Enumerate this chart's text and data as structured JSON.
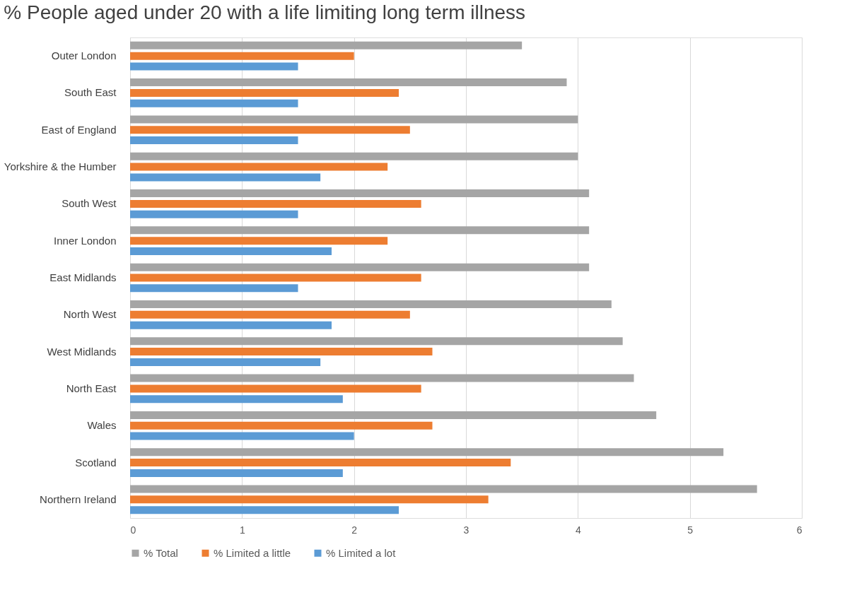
{
  "chart_data": {
    "type": "bar",
    "orientation": "horizontal",
    "title": "% People aged under 20 with a life limiting long term illness",
    "categories": [
      "Outer London",
      "South East",
      "East of England",
      "Yorkshire & the Humber",
      "South West",
      "Inner London",
      "East Midlands",
      "North West",
      "West Midlands",
      "North East",
      "Wales",
      "Scotland",
      "Northern Ireland"
    ],
    "series": [
      {
        "name": "% Total",
        "color": "#a5a5a5",
        "values": [
          3.5,
          3.9,
          4.0,
          4.0,
          4.1,
          4.1,
          4.1,
          4.3,
          4.4,
          4.5,
          4.7,
          5.3,
          5.6
        ]
      },
      {
        "name": "% Limited a little",
        "color": "#ed7d31",
        "values": [
          2.0,
          2.4,
          2.5,
          2.3,
          2.6,
          2.3,
          2.6,
          2.5,
          2.7,
          2.6,
          2.7,
          3.4,
          3.2
        ]
      },
      {
        "name": "% Limited a lot",
        "color": "#5b9bd5",
        "values": [
          1.5,
          1.5,
          1.5,
          1.7,
          1.5,
          1.8,
          1.5,
          1.8,
          1.7,
          1.9,
          2.0,
          1.9,
          2.4
        ]
      }
    ],
    "xlim": [
      0,
      6
    ],
    "xticks": [
      0,
      1,
      2,
      3,
      4,
      5,
      6
    ],
    "grid": "x",
    "legend": "bottom"
  }
}
